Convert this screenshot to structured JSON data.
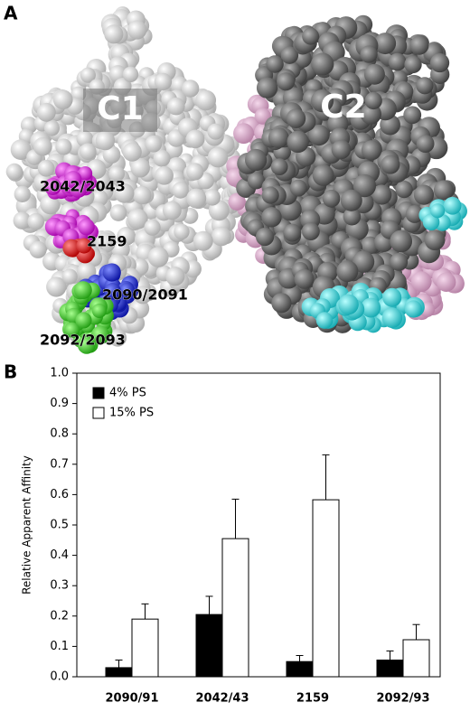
{
  "panels": {
    "a": "A",
    "b": "B"
  },
  "structure": {
    "domains": [
      "C1",
      "C2"
    ],
    "sites": [
      "2042/2043",
      "2159",
      "2090/2091",
      "2092/2093"
    ]
  },
  "chart_data": {
    "type": "bar",
    "y_label": "Relative Apparent Affinity",
    "categories": [
      "2090/91",
      "2042/43",
      "2159",
      "2092/93"
    ],
    "series": [
      {
        "name": "4% PS",
        "color": "#000000",
        "values": [
          0.03,
          0.205,
          0.05,
          0.055
        ],
        "errors": [
          0.025,
          0.06,
          0.02,
          0.03
        ]
      },
      {
        "name": "15% PS",
        "color": "#ffffff",
        "values": [
          0.19,
          0.455,
          0.583,
          0.122
        ],
        "errors": [
          0.05,
          0.13,
          0.148,
          0.05
        ]
      }
    ],
    "ylim": [
      0,
      1
    ],
    "yticks": [
      {
        "value": 0,
        "label": "0.0"
      },
      0.1,
      0.2,
      0.3,
      0.4,
      0.5,
      0.6,
      0.7,
      0.8,
      0.9,
      {
        "value": 1,
        "label": "1.0"
      }
    ],
    "legend": "upper left"
  }
}
